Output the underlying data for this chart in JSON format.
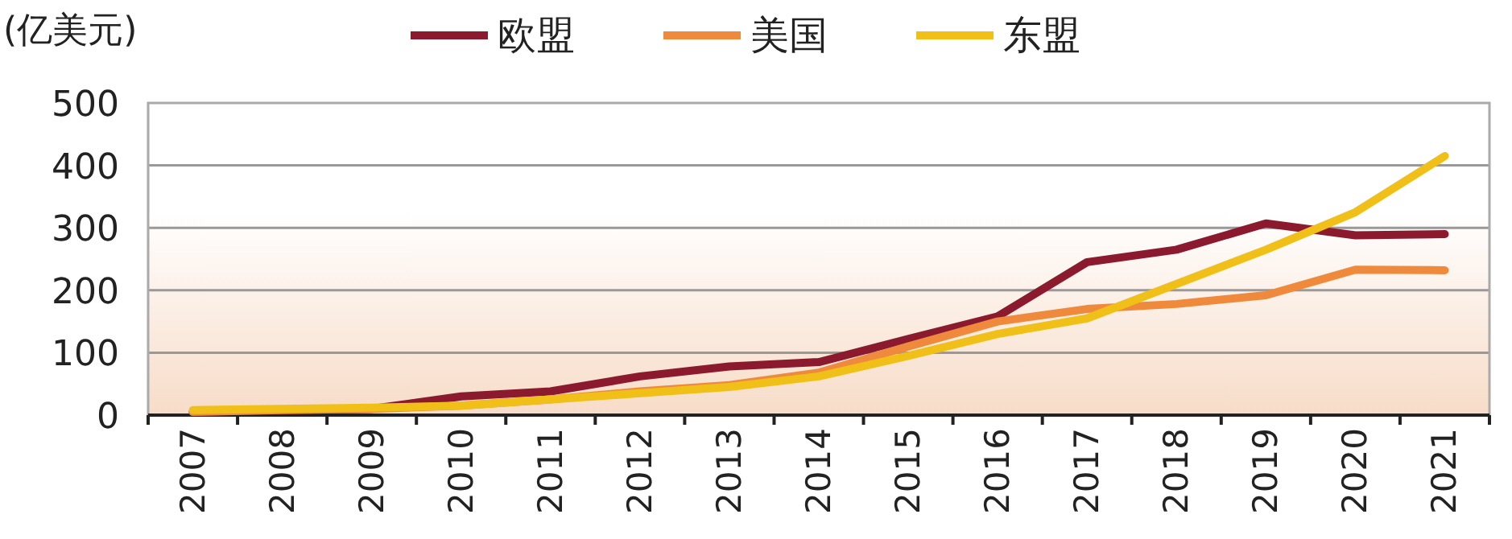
{
  "chart_data": {
    "type": "line",
    "ylabel": "(亿美元)",
    "categories": [
      "2007",
      "2008",
      "2009",
      "2010",
      "2011",
      "2012",
      "2013",
      "2014",
      "2015",
      "2016",
      "2017",
      "2018",
      "2019",
      "2020",
      "2021"
    ],
    "series": [
      {
        "name": "欧盟",
        "color": "#8b1a2e",
        "values": [
          5,
          8,
          10,
          30,
          38,
          62,
          78,
          85,
          122,
          158,
          245,
          265,
          307,
          288,
          290
        ]
      },
      {
        "name": "美国",
        "color": "#ef8a3c",
        "values": [
          5,
          8,
          10,
          15,
          25,
          38,
          48,
          68,
          110,
          150,
          170,
          178,
          192,
          233,
          232
        ]
      },
      {
        "name": "东盟",
        "color": "#f0c018",
        "values": [
          8,
          10,
          12,
          15,
          25,
          35,
          45,
          62,
          95,
          130,
          155,
          210,
          265,
          325,
          415
        ]
      }
    ],
    "ylim": [
      0,
      500
    ],
    "yticks": [
      0,
      100,
      200,
      300,
      400,
      500
    ],
    "grid": "y",
    "legend": "top",
    "marker": "none",
    "line_style": "solid"
  }
}
